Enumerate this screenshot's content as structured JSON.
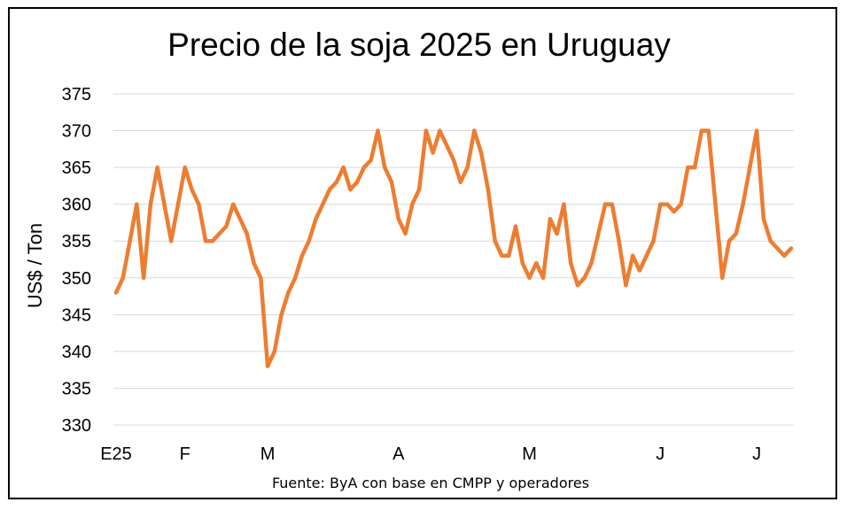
{
  "chart_data": {
    "type": "line",
    "title": "Precio de la soja 2025 en Uruguay",
    "ylabel": "US$ / Ton",
    "xlabel": "",
    "source": "Fuente: ByA con base en CMPP y operadores",
    "ylim": [
      330,
      375
    ],
    "yticks": [
      330,
      335,
      340,
      345,
      350,
      355,
      360,
      365,
      370,
      375
    ],
    "grid": true,
    "legend": "none",
    "xtick_labels": [
      {
        "label": "E25",
        "index": 0
      },
      {
        "label": "F",
        "index": 10
      },
      {
        "label": "M",
        "index": 22
      },
      {
        "label": "A",
        "index": 41
      },
      {
        "label": "M",
        "index": 60
      },
      {
        "label": "J",
        "index": 79
      },
      {
        "label": "J",
        "index": 93
      }
    ],
    "series": [
      {
        "color": "#ED7D31",
        "values": [
          348,
          350,
          355,
          360,
          350,
          360,
          365,
          360,
          355,
          360,
          365,
          362,
          360,
          355,
          355,
          356,
          357,
          360,
          358,
          356,
          352,
          350,
          338,
          340,
          345,
          348,
          350,
          353,
          355,
          358,
          360,
          362,
          363,
          365,
          362,
          363,
          365,
          366,
          370,
          365,
          363,
          358,
          356,
          360,
          362,
          370,
          367,
          370,
          368,
          366,
          363,
          365,
          370,
          367,
          362,
          355,
          353,
          353,
          357,
          352,
          350,
          352,
          350,
          358,
          356,
          360,
          352,
          349,
          350,
          352,
          356,
          360,
          360,
          355,
          349,
          353,
          351,
          353,
          355,
          360,
          360,
          359,
          360,
          365,
          365,
          370,
          370,
          360,
          350,
          355,
          356,
          360,
          365,
          370,
          358,
          355,
          354,
          353,
          354
        ]
      }
    ]
  }
}
